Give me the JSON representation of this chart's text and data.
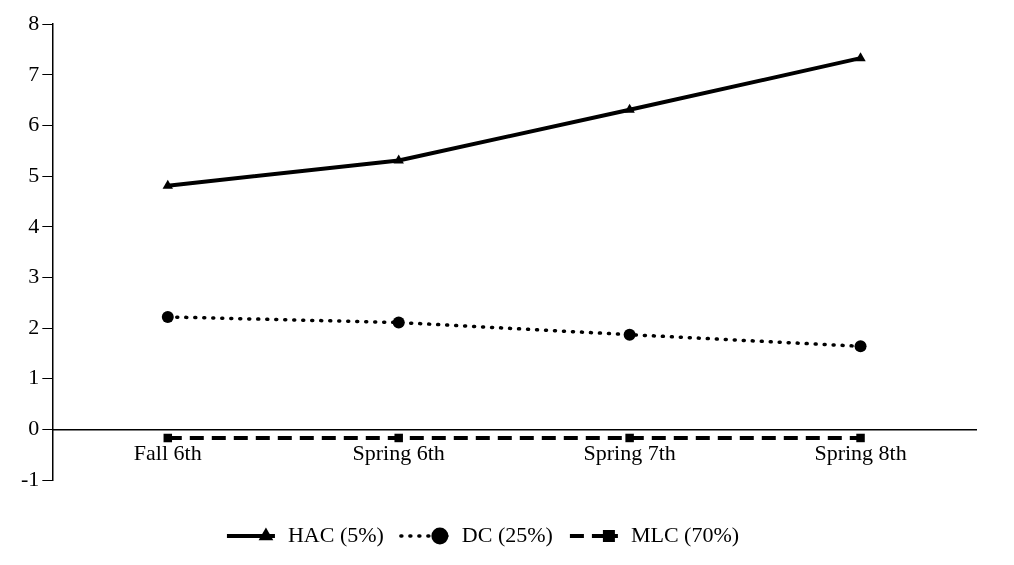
{
  "chart_data": {
    "type": "line",
    "categories": [
      "Fall 6th",
      "Spring 6th",
      "Spring 7th",
      "Spring 8th"
    ],
    "series": [
      {
        "name": "HAC (5%)",
        "color": "#000000",
        "values": [
          4.81,
          5.31,
          6.31,
          7.33
        ],
        "marker": "triangle",
        "line_style": "solid"
      },
      {
        "name": "DC (25%)",
        "color": "#000000",
        "values": [
          2.22,
          2.11,
          1.87,
          1.64
        ],
        "marker": "circle",
        "line_style": "dotted"
      },
      {
        "name": "MLC (70%)",
        "color": "#000000",
        "values": [
          -0.17,
          -0.17,
          -0.17,
          -0.17
        ],
        "marker": "square",
        "line_style": "dashed"
      }
    ],
    "ylim": [
      -1,
      8
    ],
    "yticks": [
      -1,
      0,
      1,
      2,
      3,
      4,
      5,
      6,
      7,
      8
    ],
    "grid": false,
    "legend": "bottom"
  }
}
